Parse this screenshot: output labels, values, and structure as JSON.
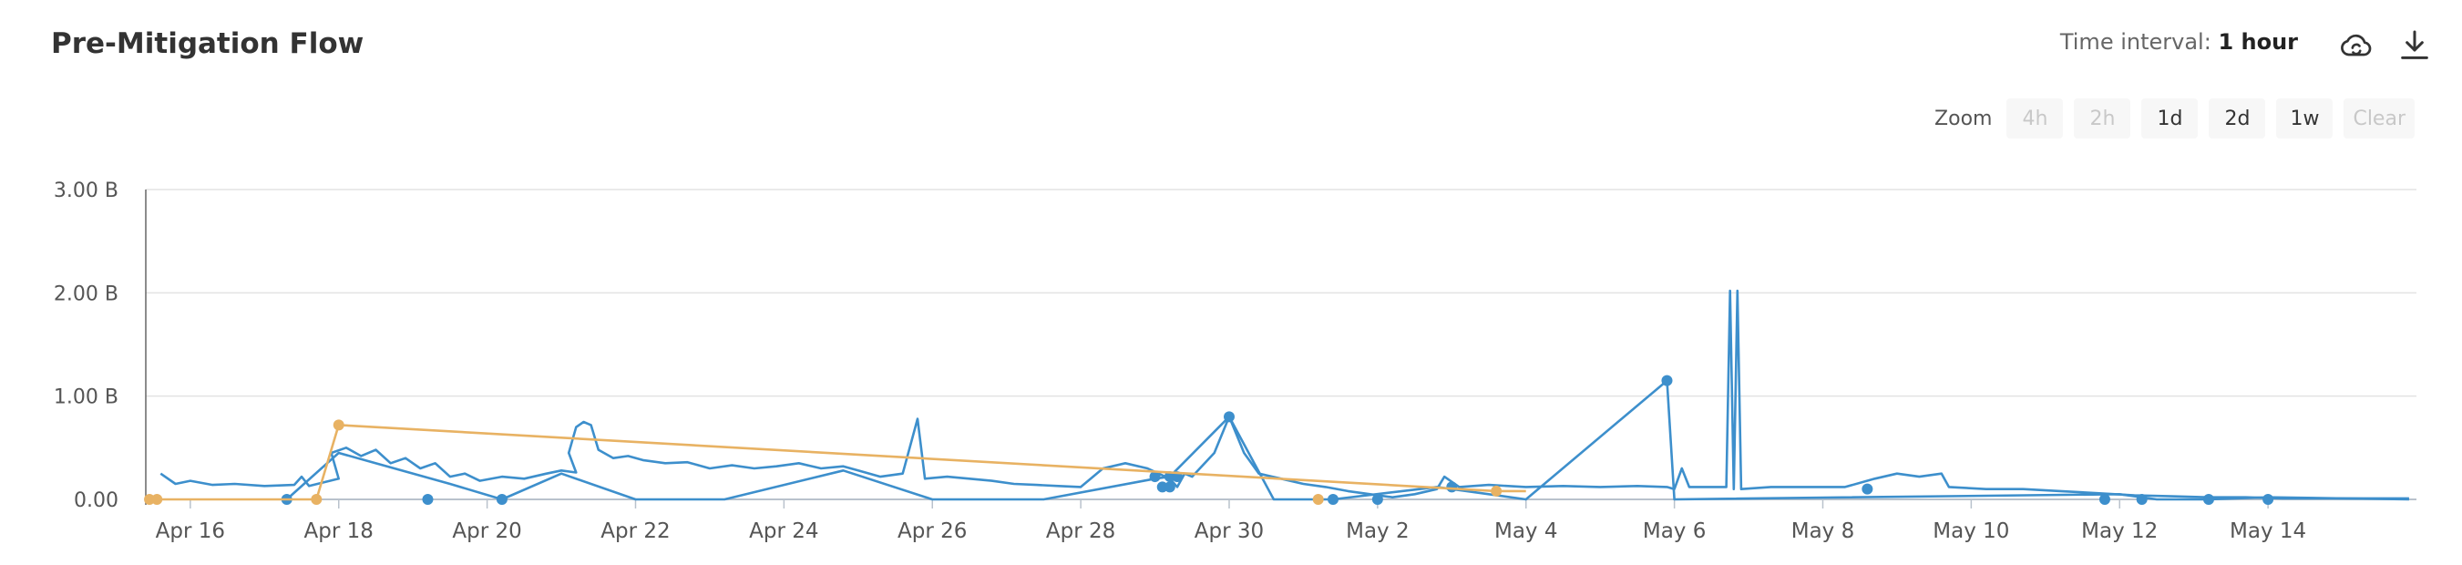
{
  "header": {
    "title": "Pre-Mitigation Flow",
    "interval_label": "Time interval:",
    "interval_value": "1 hour",
    "icons": {
      "export": "cloud-refresh-icon",
      "download": "download-icon"
    }
  },
  "zoom": {
    "label": "Zoom",
    "buttons": [
      {
        "label": "4h",
        "enabled": false
      },
      {
        "label": "2h",
        "enabled": false
      },
      {
        "label": "1d",
        "enabled": true
      },
      {
        "label": "2d",
        "enabled": true
      },
      {
        "label": "1w",
        "enabled": true
      },
      {
        "label": "Clear",
        "enabled": false
      }
    ]
  },
  "chart_data": {
    "type": "line",
    "title": "Pre-Mitigation Flow",
    "x_unit": "days since Apr 15 00:00",
    "xlim": [
      15.4,
      46.0
    ],
    "ylim": [
      0,
      3.0
    ],
    "y_ticks": [
      {
        "value": 0,
        "label": "0.00"
      },
      {
        "value": 1,
        "label": "1.00 B"
      },
      {
        "value": 2,
        "label": "2.00 B"
      },
      {
        "value": 3,
        "label": "3.00 B"
      }
    ],
    "x_ticks": [
      {
        "value": 16,
        "label": "Apr 16"
      },
      {
        "value": 18,
        "label": "Apr 18"
      },
      {
        "value": 20,
        "label": "Apr 20"
      },
      {
        "value": 22,
        "label": "Apr 22"
      },
      {
        "value": 24,
        "label": "Apr 24"
      },
      {
        "value": 26,
        "label": "Apr 26"
      },
      {
        "value": 28,
        "label": "Apr 28"
      },
      {
        "value": 30,
        "label": "Apr 30"
      },
      {
        "value": 32,
        "label": "May 2"
      },
      {
        "value": 34,
        "label": "May 4"
      },
      {
        "value": 36,
        "label": "May 6"
      },
      {
        "value": 38,
        "label": "May 8"
      },
      {
        "value": 40,
        "label": "May 10"
      },
      {
        "value": 42,
        "label": "May 12"
      },
      {
        "value": 44,
        "label": "May 14"
      }
    ],
    "grid": true,
    "legend": "none",
    "series": [
      {
        "color": "#3d8fcc",
        "points": [
          [
            15.6,
            0.25
          ],
          [
            15.8,
            0.15
          ],
          [
            16.0,
            0.18
          ],
          [
            16.3,
            0.14
          ],
          [
            16.6,
            0.15
          ],
          [
            17.0,
            0.13
          ],
          [
            17.4,
            0.14
          ],
          [
            17.5,
            0.22
          ],
          [
            17.6,
            0.13
          ],
          [
            18.0,
            0.2
          ],
          [
            17.9,
            0.45
          ],
          [
            18.1,
            0.5
          ],
          [
            18.3,
            0.42
          ],
          [
            18.5,
            0.48
          ],
          [
            18.7,
            0.35
          ],
          [
            18.9,
            0.4
          ],
          [
            19.1,
            0.3
          ],
          [
            19.3,
            0.35
          ],
          [
            19.5,
            0.22
          ],
          [
            19.7,
            0.25
          ],
          [
            19.9,
            0.18
          ],
          [
            20.2,
            0.22
          ],
          [
            20.5,
            0.2
          ],
          [
            20.8,
            0.25
          ],
          [
            21.0,
            0.28
          ],
          [
            21.2,
            0.26
          ],
          [
            21.1,
            0.45
          ],
          [
            21.2,
            0.7
          ],
          [
            21.3,
            0.75
          ],
          [
            21.4,
            0.72
          ],
          [
            21.5,
            0.48
          ],
          [
            21.7,
            0.4
          ],
          [
            21.9,
            0.42
          ],
          [
            22.1,
            0.38
          ],
          [
            22.4,
            0.35
          ],
          [
            22.7,
            0.36
          ],
          [
            23.0,
            0.3
          ],
          [
            23.3,
            0.33
          ],
          [
            23.6,
            0.3
          ],
          [
            23.9,
            0.32
          ],
          [
            24.2,
            0.35
          ],
          [
            24.5,
            0.3
          ],
          [
            24.8,
            0.32
          ],
          [
            25.0,
            0.28
          ],
          [
            25.3,
            0.22
          ],
          [
            25.6,
            0.25
          ],
          [
            25.8,
            0.78
          ],
          [
            25.9,
            0.2
          ],
          [
            26.2,
            0.22
          ],
          [
            26.5,
            0.2
          ],
          [
            26.8,
            0.18
          ],
          [
            27.1,
            0.15
          ],
          [
            27.4,
            0.14
          ],
          [
            27.7,
            0.13
          ],
          [
            28.0,
            0.12
          ],
          [
            28.3,
            0.3
          ],
          [
            28.6,
            0.35
          ],
          [
            28.9,
            0.3
          ],
          [
            29.2,
            0.2
          ],
          [
            29.3,
            0.12
          ],
          [
            29.4,
            0.25
          ],
          [
            29.5,
            0.22
          ],
          [
            29.8,
            0.45
          ],
          [
            30.0,
            0.8
          ],
          [
            30.2,
            0.45
          ],
          [
            30.4,
            0.25
          ],
          [
            30.7,
            0.2
          ],
          [
            31.0,
            0.15
          ],
          [
            31.3,
            0.12
          ],
          [
            31.6,
            0.08
          ],
          [
            31.9,
            0.05
          ],
          [
            32.2,
            0.02
          ],
          [
            32.5,
            0.05
          ],
          [
            32.8,
            0.1
          ],
          [
            32.9,
            0.22
          ],
          [
            33.1,
            0.12
          ],
          [
            33.5,
            0.14
          ],
          [
            34.0,
            0.12
          ],
          [
            34.5,
            0.13
          ],
          [
            35.0,
            0.12
          ],
          [
            35.5,
            0.13
          ],
          [
            35.9,
            0.12
          ],
          [
            36.0,
            0.1
          ],
          [
            36.1,
            0.3
          ],
          [
            36.2,
            0.12
          ],
          [
            36.5,
            0.12
          ],
          [
            36.7,
            0.12
          ],
          [
            36.75,
            2.02
          ],
          [
            36.8,
            0.1
          ],
          [
            36.85,
            2.02
          ],
          [
            36.9,
            0.1
          ],
          [
            37.3,
            0.12
          ],
          [
            37.8,
            0.12
          ],
          [
            38.3,
            0.12
          ],
          [
            38.7,
            0.2
          ],
          [
            39.0,
            0.25
          ],
          [
            39.3,
            0.22
          ],
          [
            39.6,
            0.25
          ],
          [
            39.7,
            0.12
          ],
          [
            40.2,
            0.1
          ],
          [
            40.7,
            0.1
          ],
          [
            41.2,
            0.08
          ],
          [
            41.7,
            0.06
          ],
          [
            42.2,
            0.04
          ],
          [
            42.7,
            0.03
          ],
          [
            43.2,
            0.02
          ],
          [
            43.7,
            0.02
          ],
          [
            44.2,
            0.01
          ],
          [
            44.7,
            0.01
          ],
          [
            45.2,
            0.01
          ],
          [
            45.9,
            0.01
          ]
        ],
        "connections": [
          [
            17.3,
            0.0
          ],
          [
            18.0,
            0.45
          ],
          [
            19.5,
            0.15
          ],
          [
            20.2,
            0.0
          ],
          [
            21.0,
            0.25
          ],
          [
            22.0,
            0.0
          ],
          [
            23.2,
            0.0
          ],
          [
            24.8,
            0.28
          ],
          [
            26.0,
            0.0
          ],
          [
            27.5,
            0.0
          ],
          [
            29.0,
            0.2
          ],
          [
            29.2,
            0.22
          ],
          [
            30.0,
            0.8
          ],
          [
            30.6,
            0.0
          ],
          [
            31.4,
            0.0
          ],
          [
            32.8,
            0.12
          ],
          [
            34.0,
            0.0
          ],
          [
            35.9,
            1.15
          ],
          [
            36.0,
            0.0
          ],
          [
            42.0,
            0.05
          ],
          [
            42.5,
            0.0
          ],
          [
            43.2,
            0.0
          ],
          [
            44.0,
            0.02
          ],
          [
            45.9,
            0.0
          ]
        ],
        "markers": [
          [
            17.3,
            0.0
          ],
          [
            19.2,
            0.0
          ],
          [
            20.2,
            0.0
          ],
          [
            29.0,
            0.22
          ],
          [
            29.2,
            0.22
          ],
          [
            29.3,
            0.22
          ],
          [
            29.1,
            0.12
          ],
          [
            29.2,
            0.12
          ],
          [
            30.0,
            0.8
          ],
          [
            35.9,
            1.15
          ],
          [
            38.6,
            0.1
          ],
          [
            41.8,
            0.0
          ],
          [
            42.3,
            0.0
          ],
          [
            43.2,
            0.0
          ],
          [
            44.0,
            0.0
          ],
          [
            31.4,
            0.0
          ],
          [
            32.0,
            0.0
          ],
          [
            33.0,
            0.12
          ]
        ]
      },
      {
        "color": "#e8b263",
        "points": [
          [
            15.4,
            0.0
          ],
          [
            17.7,
            0.0
          ],
          [
            18.0,
            0.72
          ],
          [
            33.6,
            0.08
          ],
          [
            34.0,
            0.08
          ]
        ],
        "markers": [
          [
            15.45,
            0.0
          ],
          [
            15.55,
            0.0
          ],
          [
            17.7,
            0.0
          ],
          [
            18.0,
            0.72
          ],
          [
            31.2,
            0.0
          ],
          [
            33.6,
            0.08
          ]
        ]
      }
    ]
  }
}
